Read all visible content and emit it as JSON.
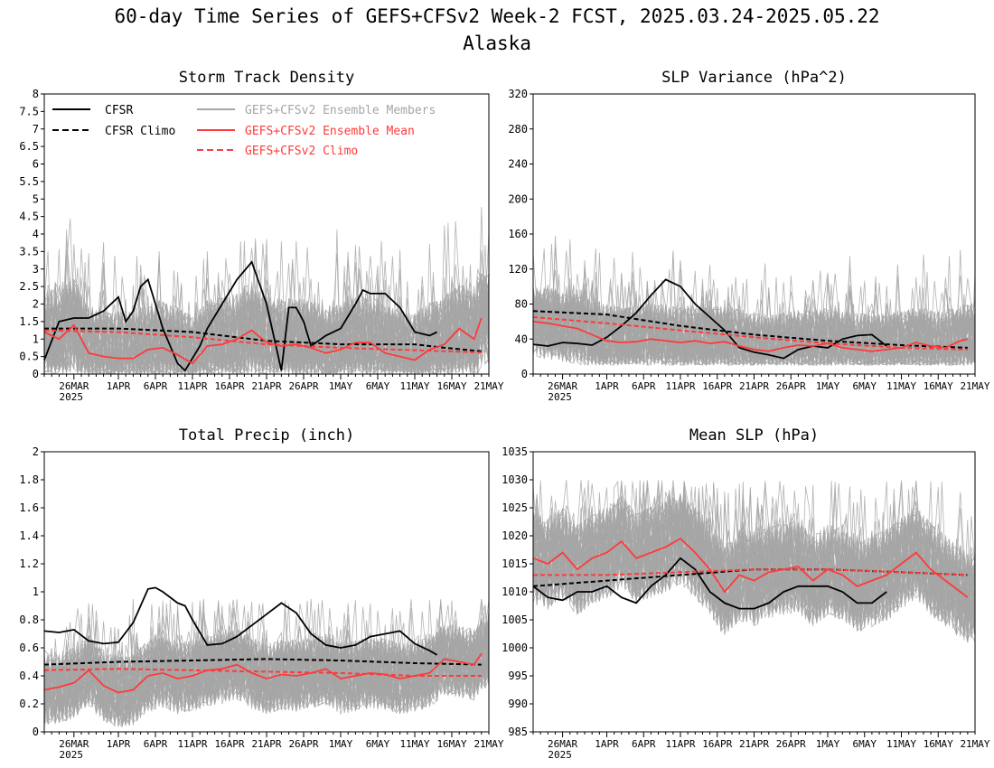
{
  "title": "60-day Time Series of GEFS+CFSv2 Week-2 FCST, 2025.03.24-2025.05.22",
  "subtitle": "Alaska",
  "colors": {
    "cfsr": "#000000",
    "ensemble": "#a6a6a6",
    "mean": "#ff3a3a",
    "clim": "#000000",
    "fclim": "#ff3a3a"
  },
  "x_tick_labels": [
    "26MAR",
    "1APR",
    "6APR",
    "11APR",
    "16APR",
    "21APR",
    "26APR",
    "1MAY",
    "6MAY",
    "11MAY",
    "16MAY",
    "21MAY"
  ],
  "x_year_label": "2025",
  "legend": {
    "cfsr": "CFSR",
    "cfsr_climo": "CFSR Climo",
    "members": "GEFS+CFSv2 Ensemble Members",
    "mean": "GEFS+CFSv2 Ensemble Mean",
    "fclimo": "GEFS+CFSv2 Climo"
  },
  "chart_data": [
    {
      "id": "storm",
      "type": "line",
      "title": "Storm Track Density",
      "ylim": [
        0,
        8
      ],
      "yticks": [
        "0",
        "0.5",
        "1",
        "1.5",
        "2",
        "2.5",
        "3",
        "3.5",
        "4",
        "4.5",
        "5",
        "5.5",
        "6",
        "6.5",
        "7",
        "7.5",
        "8"
      ],
      "ensemble_range": {
        "low": 0.0,
        "high": 4.9
      },
      "series": [
        {
          "name": "CFSR",
          "style": "solid",
          "color": "#000000",
          "x": [
            0,
            2,
            4,
            6,
            8,
            10,
            11,
            12,
            13,
            14,
            16,
            18,
            19,
            21,
            22,
            24,
            26,
            28,
            30,
            32,
            33,
            34,
            35,
            36,
            38,
            40,
            42,
            43,
            44,
            46,
            48,
            50,
            52,
            53
          ],
          "y": [
            0.4,
            1.5,
            1.6,
            1.6,
            1.8,
            2.2,
            1.5,
            1.8,
            2.5,
            2.7,
            1.3,
            0.3,
            0.1,
            0.8,
            1.3,
            2.0,
            2.7,
            3.2,
            2.0,
            0.1,
            1.9,
            1.9,
            1.5,
            0.8,
            1.1,
            1.3,
            2.0,
            2.4,
            2.3,
            2.3,
            1.9,
            1.2,
            1.1,
            1.2
          ]
        },
        {
          "name": "CFSR Climo",
          "style": "dashed",
          "color": "#000000",
          "x": [
            0,
            10,
            20,
            30,
            40,
            50,
            54,
            59
          ],
          "y": [
            1.3,
            1.3,
            1.2,
            0.95,
            0.85,
            0.85,
            0.75,
            0.65
          ]
        },
        {
          "name": "GEFS+CFSv2 Ensemble Mean",
          "style": "solid",
          "color": "#ff3a3a",
          "x": [
            0,
            2,
            4,
            6,
            8,
            10,
            12,
            14,
            16,
            18,
            20,
            22,
            24,
            26,
            28,
            30,
            32,
            34,
            36,
            38,
            40,
            42,
            44,
            46,
            48,
            50,
            52,
            54,
            56,
            58,
            59
          ],
          "y": [
            1.2,
            1.0,
            1.4,
            0.6,
            0.5,
            0.45,
            0.45,
            0.7,
            0.75,
            0.55,
            0.3,
            0.8,
            0.85,
            1.0,
            1.25,
            0.9,
            0.8,
            0.85,
            0.75,
            0.6,
            0.7,
            0.9,
            0.9,
            0.6,
            0.5,
            0.4,
            0.7,
            0.85,
            1.3,
            1.0,
            1.6
          ]
        },
        {
          "name": "GEFS+CFSv2 Climo",
          "style": "dashed",
          "color": "#ff3a3a",
          "x": [
            0,
            10,
            20,
            30,
            40,
            50,
            59
          ],
          "y": [
            1.25,
            1.2,
            1.05,
            0.85,
            0.75,
            0.68,
            0.62
          ]
        }
      ]
    },
    {
      "id": "slpvar",
      "type": "line",
      "title": "SLP Variance (hPa^2)",
      "ylim": [
        0,
        320
      ],
      "yticks": [
        "0",
        "40",
        "80",
        "120",
        "160",
        "200",
        "240",
        "280",
        "320"
      ],
      "ensemble_range": {
        "low": 10,
        "high": 160
      },
      "series": [
        {
          "name": "CFSR",
          "style": "solid",
          "color": "#000000",
          "x": [
            0,
            2,
            4,
            6,
            8,
            10,
            12,
            14,
            16,
            18,
            20,
            22,
            24,
            26,
            28,
            30,
            32,
            34,
            36,
            38,
            40,
            42,
            44,
            46,
            48
          ],
          "y": [
            34,
            32,
            36,
            35,
            33,
            42,
            55,
            70,
            90,
            108,
            100,
            80,
            65,
            50,
            30,
            25,
            22,
            18,
            28,
            32,
            30,
            40,
            44,
            45,
            32
          ]
        },
        {
          "name": "CFSR Climo",
          "style": "dashed",
          "color": "#000000",
          "x": [
            0,
            10,
            20,
            30,
            40,
            50,
            59
          ],
          "y": [
            72,
            68,
            55,
            45,
            38,
            33,
            30
          ]
        },
        {
          "name": "GEFS+CFSv2 Ensemble Mean",
          "style": "solid",
          "color": "#ff3a3a",
          "x": [
            0,
            2,
            4,
            6,
            8,
            10,
            12,
            14,
            16,
            18,
            20,
            22,
            24,
            26,
            28,
            30,
            32,
            34,
            36,
            38,
            40,
            42,
            44,
            46,
            48,
            50,
            52,
            54,
            56,
            58,
            59
          ],
          "y": [
            60,
            58,
            55,
            52,
            45,
            38,
            36,
            37,
            40,
            38,
            36,
            38,
            35,
            37,
            32,
            28,
            26,
            30,
            33,
            32,
            35,
            30,
            28,
            26,
            28,
            30,
            36,
            32,
            30,
            38,
            40
          ]
        },
        {
          "name": "GEFS+CFSv2 Climo",
          "style": "dashed",
          "color": "#ff3a3a",
          "x": [
            0,
            10,
            20,
            30,
            40,
            50,
            59
          ],
          "y": [
            65,
            58,
            50,
            42,
            35,
            30,
            28
          ]
        }
      ]
    },
    {
      "id": "precip",
      "type": "line",
      "title": "Total Precip (inch)",
      "ylim": [
        0,
        2
      ],
      "yticks": [
        "0",
        "0.2",
        "0.4",
        "0.6",
        "0.8",
        "1",
        "1.2",
        "1.4",
        "1.6",
        "1.8",
        "2"
      ],
      "ensemble_range": {
        "low": 0.02,
        "high": 0.95
      },
      "series": [
        {
          "name": "CFSR",
          "style": "solid",
          "color": "#000000",
          "x": [
            0,
            2,
            4,
            6,
            8,
            10,
            12,
            14,
            15,
            16,
            18,
            19,
            20,
            22,
            24,
            26,
            28,
            30,
            32,
            34,
            36,
            38,
            40,
            42,
            44,
            46,
            48,
            50,
            52,
            53
          ],
          "y": [
            0.72,
            0.71,
            0.73,
            0.65,
            0.63,
            0.64,
            0.78,
            1.02,
            1.03,
            1.0,
            0.92,
            0.9,
            0.8,
            0.62,
            0.63,
            0.68,
            0.76,
            0.84,
            0.92,
            0.85,
            0.7,
            0.62,
            0.6,
            0.62,
            0.68,
            0.7,
            0.72,
            0.63,
            0.58,
            0.55
          ]
        },
        {
          "name": "CFSR Climo",
          "style": "dashed",
          "color": "#000000",
          "x": [
            0,
            10,
            20,
            30,
            40,
            50,
            59
          ],
          "y": [
            0.48,
            0.5,
            0.51,
            0.52,
            0.51,
            0.49,
            0.48
          ]
        },
        {
          "name": "GEFS+CFSv2 Ensemble Mean",
          "style": "solid",
          "color": "#ff3a3a",
          "x": [
            0,
            2,
            4,
            6,
            8,
            10,
            12,
            14,
            16,
            18,
            20,
            22,
            24,
            26,
            28,
            30,
            32,
            34,
            36,
            38,
            40,
            42,
            44,
            46,
            48,
            50,
            52,
            54,
            56,
            58,
            59
          ],
          "y": [
            0.3,
            0.32,
            0.35,
            0.44,
            0.33,
            0.28,
            0.3,
            0.4,
            0.42,
            0.38,
            0.4,
            0.44,
            0.45,
            0.48,
            0.42,
            0.38,
            0.41,
            0.4,
            0.42,
            0.45,
            0.38,
            0.4,
            0.42,
            0.41,
            0.38,
            0.4,
            0.42,
            0.52,
            0.5,
            0.48,
            0.56
          ]
        },
        {
          "name": "GEFS+CFSv2 Climo",
          "style": "dashed",
          "color": "#ff3a3a",
          "x": [
            0,
            10,
            20,
            30,
            40,
            50,
            59
          ],
          "y": [
            0.44,
            0.45,
            0.44,
            0.43,
            0.42,
            0.4,
            0.4
          ]
        }
      ]
    },
    {
      "id": "meanslp",
      "type": "line",
      "title": "Mean SLP (hPa)",
      "ylim": [
        985,
        1035
      ],
      "yticks": [
        "985",
        "990",
        "995",
        "1000",
        "1005",
        "1010",
        "1015",
        "1020",
        "1025",
        "1030",
        "1035"
      ],
      "ensemble_range": {
        "low": 1000,
        "high": 1030
      },
      "series": [
        {
          "name": "CFSR",
          "style": "solid",
          "color": "#000000",
          "x": [
            0,
            2,
            4,
            6,
            8,
            10,
            12,
            14,
            16,
            18,
            20,
            22,
            24,
            26,
            28,
            30,
            32,
            34,
            36,
            38,
            40,
            42,
            44,
            46,
            48
          ],
          "y": [
            1011,
            1009,
            1008.5,
            1010,
            1010,
            1011,
            1009,
            1008,
            1011,
            1013,
            1016,
            1014,
            1010,
            1008,
            1007,
            1007,
            1008,
            1010,
            1011,
            1011,
            1011,
            1010,
            1008,
            1008,
            1010
          ]
        },
        {
          "name": "CFSR Climo",
          "style": "dashed",
          "color": "#000000",
          "x": [
            0,
            10,
            20,
            30,
            40,
            50,
            59
          ],
          "y": [
            1011,
            1012,
            1013,
            1014,
            1014,
            1013.5,
            1013
          ]
        },
        {
          "name": "GEFS+CFSv2 Ensemble Mean",
          "style": "solid",
          "color": "#ff3a3a",
          "x": [
            0,
            2,
            4,
            6,
            8,
            10,
            12,
            14,
            16,
            18,
            20,
            22,
            24,
            26,
            28,
            30,
            32,
            34,
            36,
            38,
            40,
            42,
            44,
            46,
            48,
            50,
            52,
            54,
            56,
            58,
            59
          ],
          "y": [
            1016,
            1015,
            1017,
            1014,
            1016,
            1017,
            1019,
            1016,
            1017,
            1018,
            1019.5,
            1017,
            1014,
            1010,
            1013,
            1012,
            1013.5,
            1014,
            1014.5,
            1012,
            1014,
            1013,
            1011,
            1012,
            1013,
            1015,
            1017,
            1014,
            1012,
            1010,
            1009
          ]
        },
        {
          "name": "GEFS+CFSv2 Climo",
          "style": "dashed",
          "color": "#ff3a3a",
          "x": [
            0,
            10,
            20,
            30,
            40,
            50,
            59
          ],
          "y": [
            1013,
            1013,
            1013.5,
            1014,
            1014,
            1013.5,
            1013
          ]
        }
      ]
    }
  ]
}
